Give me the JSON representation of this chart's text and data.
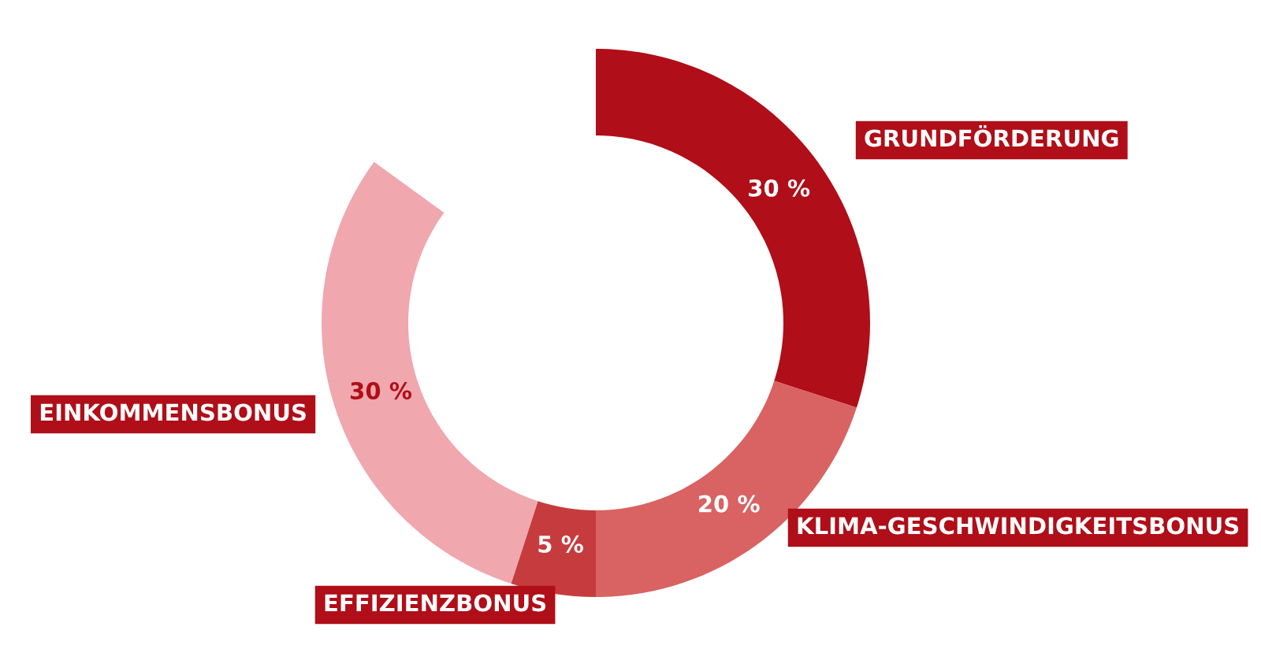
{
  "chart_data": {
    "type": "donut",
    "categories": [
      "GRUNDFÖRDERUNG",
      "KLIMA-GESCHWINDIGKEITSBONUS",
      "EFFIZIENZBONUS",
      "EINKOMMENSBONUS"
    ],
    "values": [
      30,
      20,
      5,
      30
    ],
    "value_labels": [
      "30 %",
      "20 %",
      "5 %",
      "30 %"
    ],
    "colors": [
      "#b00e18",
      "#d96262",
      "#c63c3e",
      "#f0a7ae"
    ],
    "legend": false
  }
}
